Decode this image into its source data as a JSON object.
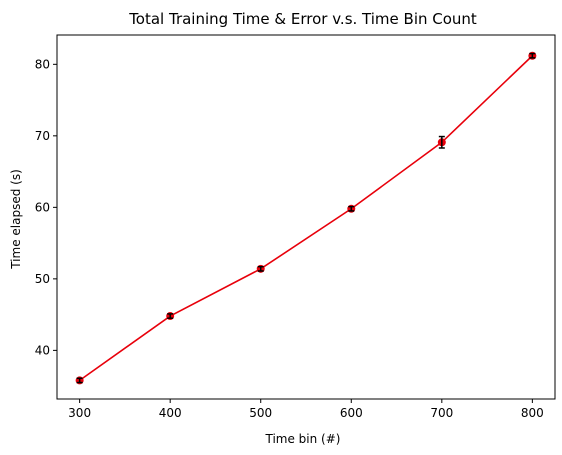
{
  "chart_data": {
    "type": "line",
    "title": "Total Training Time & Error v.s. Time Bin Count",
    "xlabel": "Time bin (#)",
    "ylabel": "Time elapsed (s)",
    "x_ticks": [
      300,
      400,
      500,
      600,
      700,
      800
    ],
    "y_ticks": [
      40,
      50,
      60,
      70,
      80
    ],
    "xlim": [
      275,
      825
    ],
    "ylim": [
      33.2,
      84.1
    ],
    "grid": false,
    "series": [
      {
        "x": [
          300,
          400,
          500,
          600,
          700,
          800
        ],
        "y": [
          35.8,
          44.8,
          51.4,
          59.8,
          69.1,
          81.2
        ],
        "yerr": [
          0.3,
          0.3,
          0.3,
          0.3,
          0.8,
          0.3
        ],
        "line_color": "#e8000b",
        "marker_color": "#e8000b",
        "errorbar_color": "#000000"
      }
    ]
  }
}
